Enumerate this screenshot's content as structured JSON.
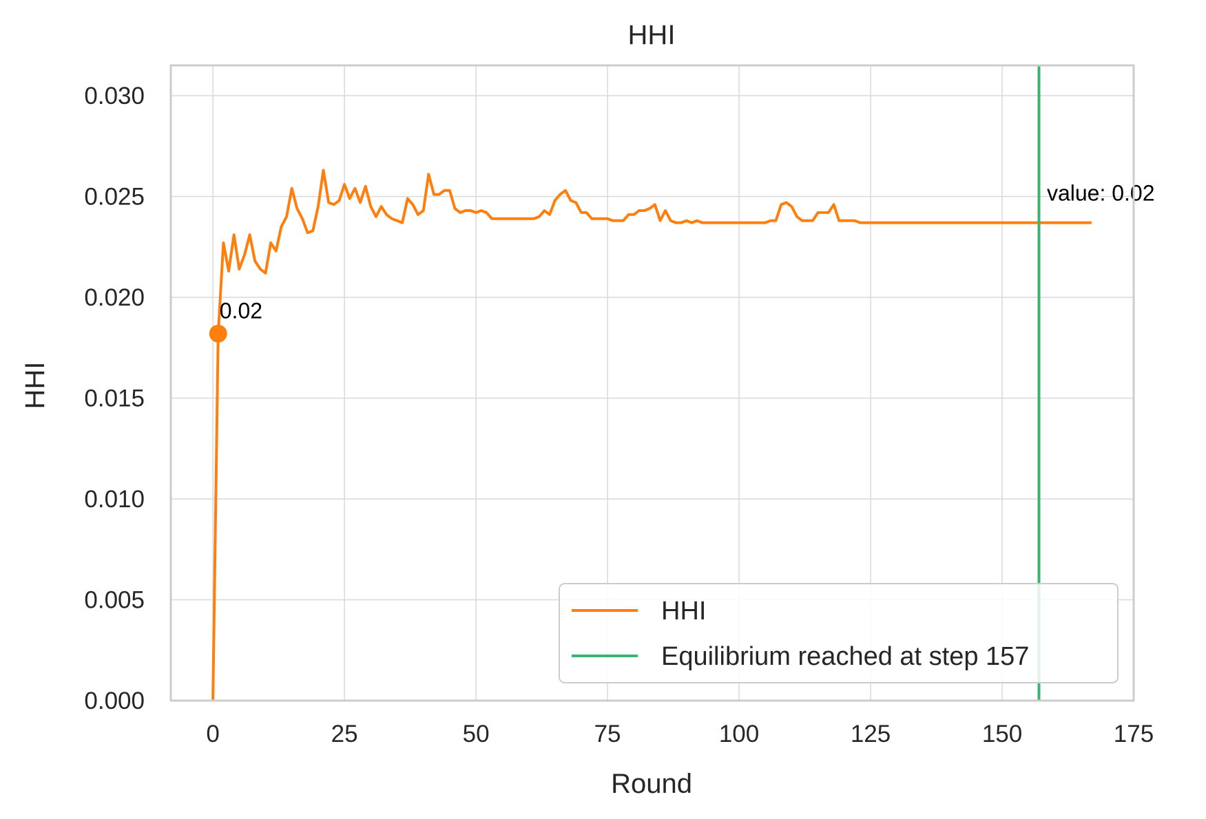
{
  "chart_data": {
    "type": "line",
    "title": "HHI",
    "xlabel": "Round",
    "ylabel": "HHI",
    "xlim": [
      -8,
      175
    ],
    "ylim": [
      0,
      0.0315
    ],
    "xticks": [
      0,
      25,
      50,
      75,
      100,
      125,
      150,
      175
    ],
    "xtick_labels": [
      "0",
      "25",
      "50",
      "75",
      "100",
      "125",
      "150",
      "175"
    ],
    "yticks": [
      0,
      0.005,
      0.01,
      0.015,
      0.02,
      0.025,
      0.03
    ],
    "ytick_labels": [
      "0.000",
      "0.005",
      "0.010",
      "0.015",
      "0.020",
      "0.025",
      "0.030"
    ],
    "grid": true,
    "legend_position": "lower-right",
    "colors": {
      "hhi": "#ff7f0e",
      "equilibrium": "#3cb371",
      "grid": "#d9d9d9",
      "frame": "#cccccc"
    },
    "series": [
      {
        "name": "HHI",
        "x": [
          0,
          1,
          2,
          3,
          4,
          5,
          6,
          7,
          8,
          9,
          10,
          11,
          12,
          13,
          14,
          15,
          16,
          17,
          18,
          19,
          20,
          21,
          22,
          23,
          24,
          25,
          26,
          27,
          28,
          29,
          30,
          31,
          32,
          33,
          34,
          35,
          36,
          37,
          38,
          39,
          40,
          41,
          42,
          43,
          44,
          45,
          46,
          47,
          48,
          49,
          50,
          51,
          52,
          53,
          54,
          55,
          56,
          57,
          58,
          59,
          60,
          61,
          62,
          63,
          64,
          65,
          66,
          67,
          68,
          69,
          70,
          71,
          72,
          73,
          74,
          75,
          76,
          77,
          78,
          79,
          80,
          81,
          82,
          83,
          84,
          85,
          86,
          87,
          88,
          89,
          90,
          91,
          92,
          93,
          94,
          95,
          96,
          97,
          98,
          99,
          100,
          101,
          102,
          103,
          104,
          105,
          106,
          107,
          108,
          109,
          110,
          111,
          112,
          113,
          114,
          115,
          116,
          117,
          118,
          119,
          120,
          121,
          122,
          123,
          124,
          125,
          130,
          135,
          140,
          145,
          150,
          155,
          160,
          165,
          167
        ],
        "values": [
          0.0,
          0.0182,
          0.0227,
          0.0213,
          0.0231,
          0.0214,
          0.0221,
          0.0231,
          0.0218,
          0.0214,
          0.0212,
          0.0227,
          0.0223,
          0.0235,
          0.024,
          0.0254,
          0.0244,
          0.0239,
          0.0232,
          0.0233,
          0.0245,
          0.0263,
          0.0247,
          0.0246,
          0.0248,
          0.0256,
          0.0249,
          0.0254,
          0.0247,
          0.0255,
          0.0245,
          0.024,
          0.0245,
          0.0241,
          0.0239,
          0.0238,
          0.0237,
          0.0249,
          0.0246,
          0.0241,
          0.0243,
          0.0261,
          0.0251,
          0.0251,
          0.0253,
          0.0253,
          0.0244,
          0.0242,
          0.0243,
          0.0243,
          0.0242,
          0.0243,
          0.0242,
          0.0239,
          0.0239,
          0.0239,
          0.0239,
          0.0239,
          0.0239,
          0.0239,
          0.0239,
          0.0239,
          0.024,
          0.0243,
          0.0241,
          0.0248,
          0.0251,
          0.0253,
          0.0248,
          0.0247,
          0.0242,
          0.0242,
          0.0239,
          0.0239,
          0.0239,
          0.0239,
          0.0238,
          0.0238,
          0.0238,
          0.0241,
          0.0241,
          0.0243,
          0.0243,
          0.0244,
          0.0246,
          0.0238,
          0.0243,
          0.0238,
          0.0237,
          0.0237,
          0.0238,
          0.0237,
          0.0238,
          0.0237,
          0.0237,
          0.0237,
          0.0237,
          0.0237,
          0.0237,
          0.0237,
          0.0237,
          0.0237,
          0.0237,
          0.0237,
          0.0237,
          0.0237,
          0.0238,
          0.0238,
          0.0246,
          0.0247,
          0.0245,
          0.024,
          0.0238,
          0.0238,
          0.0238,
          0.0242,
          0.0242,
          0.0242,
          0.0246,
          0.0238,
          0.0238,
          0.0238,
          0.0238,
          0.0237,
          0.0237,
          0.0237,
          0.0237,
          0.0237,
          0.0237,
          0.0237,
          0.0237,
          0.0237,
          0.0237,
          0.0237,
          0.0237
        ]
      }
    ],
    "vline": {
      "name": "Equilibrium reached at step 157",
      "x": 157
    },
    "marker": {
      "x": 1,
      "y": 0.0182,
      "label": "0.02"
    },
    "end_annotation": {
      "x": 158.5,
      "y": 0.0248,
      "label": "value: 0.02"
    },
    "legend": [
      {
        "label": "HHI",
        "series": "hhi"
      },
      {
        "label": "Equilibrium reached at step 157",
        "series": "equilibrium"
      }
    ]
  }
}
